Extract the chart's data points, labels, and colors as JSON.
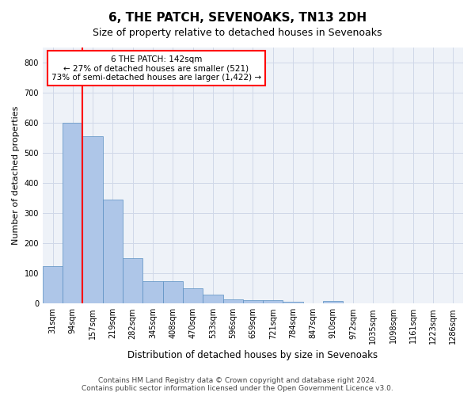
{
  "title": "6, THE PATCH, SEVENOAKS, TN13 2DH",
  "subtitle": "Size of property relative to detached houses in Sevenoaks",
  "xlabel": "Distribution of detached houses by size in Sevenoaks",
  "ylabel": "Number of detached properties",
  "bar_values": [
    125,
    600,
    555,
    345,
    150,
    75,
    75,
    50,
    30,
    15,
    12,
    12,
    7,
    0,
    8,
    0,
    0,
    0,
    0,
    0,
    0
  ],
  "categories": [
    "31sqm",
    "94sqm",
    "157sqm",
    "219sqm",
    "282sqm",
    "345sqm",
    "408sqm",
    "470sqm",
    "533sqm",
    "596sqm",
    "659sqm",
    "721sqm",
    "784sqm",
    "847sqm",
    "910sqm",
    "972sqm",
    "1035sqm",
    "1098sqm",
    "1161sqm",
    "1223sqm",
    "1286sqm"
  ],
  "bar_color": "#aec6e8",
  "bar_edge_color": "#5a8fc2",
  "grid_color": "#d0d8e8",
  "background_color": "#eef2f8",
  "red_line_x": 1.5,
  "annotation_text": "6 THE PATCH: 142sqm\n← 27% of detached houses are smaller (521)\n73% of semi-detached houses are larger (1,422) →",
  "annotation_box_color": "white",
  "annotation_border_color": "red",
  "ylim": [
    0,
    850
  ],
  "yticks": [
    0,
    100,
    200,
    300,
    400,
    500,
    600,
    700,
    800
  ],
  "footer_line1": "Contains HM Land Registry data © Crown copyright and database right 2024.",
  "footer_line2": "Contains public sector information licensed under the Open Government Licence v3.0."
}
